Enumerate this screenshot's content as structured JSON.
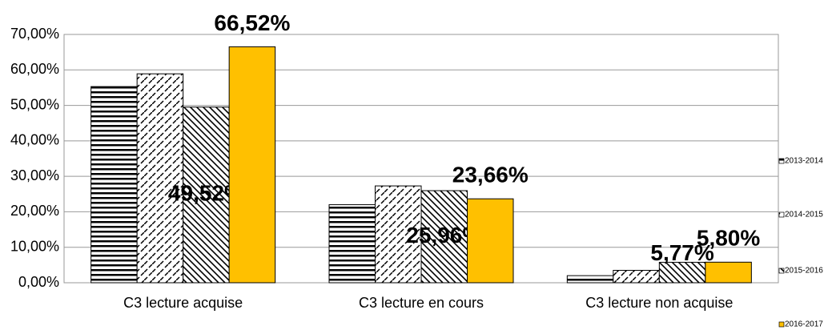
{
  "chart_data": {
    "type": "bar",
    "categories": [
      "C3 lecture acquise",
      "C3 lecture en cours",
      "C3 lecture non acquise"
    ],
    "series": [
      {
        "name": "2013-2014",
        "color": "#ffffff",
        "pattern": "horizontal",
        "values": [
          55.3,
          22.0,
          2.0
        ]
      },
      {
        "name": "2014-2015",
        "color": "#ffffff",
        "pattern": "dashed-diagonal",
        "values": [
          58.9,
          27.3,
          3.5
        ]
      },
      {
        "name": "2015-2016",
        "color": "#ffffff",
        "pattern": "diagonal",
        "values": [
          49.52,
          25.96,
          5.77
        ],
        "value_labels": [
          "49,52%",
          "25,96%",
          "5,77%"
        ]
      },
      {
        "name": "2016-2017",
        "color": "#ffc000",
        "values": [
          66.52,
          23.66,
          5.8
        ],
        "value_labels": [
          "66,52%",
          "23,66%",
          "5,80%"
        ]
      }
    ],
    "ylim": [
      0,
      70
    ],
    "yticks": [
      {
        "value": 0,
        "label": "0,00%"
      },
      {
        "value": 10,
        "label": "10,00%"
      },
      {
        "value": 20,
        "label": "20,00%"
      },
      {
        "value": 30,
        "label": "30,00%"
      },
      {
        "value": 40,
        "label": "40,00%"
      },
      {
        "value": 50,
        "label": "50,00%"
      },
      {
        "value": 60,
        "label": "60,00%"
      },
      {
        "value": 70,
        "label": "70,00%"
      }
    ],
    "grid": true
  }
}
